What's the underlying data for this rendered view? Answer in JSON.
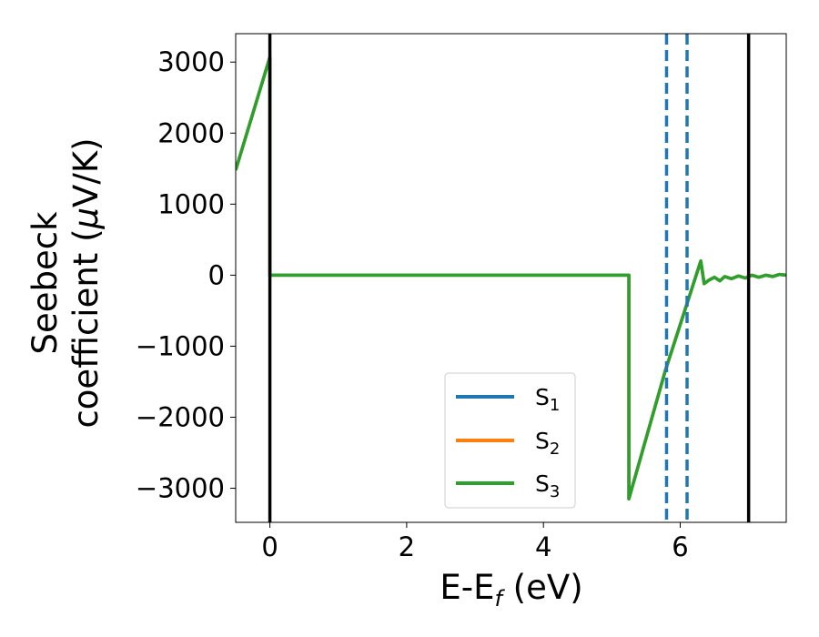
{
  "chart_data": {
    "type": "line",
    "xlabel": {
      "main": "E-E",
      "sub": "f",
      "tail": " (eV)"
    },
    "ylabel": {
      "line1": "Seebeck",
      "line2": "coefficient  (",
      "mu": "μ",
      "line2_tail": "V/K)"
    },
    "xlim": [
      -0.5,
      7.55
    ],
    "ylim": [
      -3480,
      3400
    ],
    "xticks": [
      0,
      2,
      4,
      6
    ],
    "xtick_labels": [
      "0",
      "2",
      "4",
      "6"
    ],
    "yticks": [
      3000,
      2000,
      1000,
      0,
      -1000,
      -2000,
      -3000
    ],
    "ytick_labels": [
      "3000",
      "2000",
      "1000",
      "0",
      "−1000",
      "−2000",
      "−3000"
    ],
    "grid": false,
    "legend_placement": "lower-center",
    "series": [
      {
        "name": "S",
        "sub": "1",
        "color": "#1f77b4",
        "points": [
          [
            -0.5,
            1480
          ],
          [
            0.0,
            3070
          ],
          [
            0.0,
            0
          ],
          [
            5.25,
            0
          ],
          [
            5.25,
            -3150
          ],
          [
            5.78,
            -1350
          ],
          [
            6.3,
            200
          ],
          [
            6.35,
            -120
          ],
          [
            6.42,
            -70
          ],
          [
            6.5,
            -30
          ],
          [
            6.58,
            -80
          ],
          [
            6.65,
            -20
          ],
          [
            6.75,
            -50
          ],
          [
            6.85,
            -10
          ],
          [
            6.95,
            -40
          ],
          [
            7.05,
            0
          ],
          [
            7.15,
            -30
          ],
          [
            7.25,
            0
          ],
          [
            7.35,
            -20
          ],
          [
            7.45,
            10
          ],
          [
            7.55,
            0
          ]
        ]
      },
      {
        "name": "S",
        "sub": "2",
        "color": "#ff7f0e",
        "points": [
          [
            -0.5,
            1480
          ],
          [
            0.0,
            3070
          ],
          [
            0.0,
            0
          ],
          [
            5.25,
            0
          ],
          [
            5.25,
            -3150
          ],
          [
            5.78,
            -1350
          ],
          [
            6.3,
            200
          ],
          [
            6.35,
            -120
          ],
          [
            6.42,
            -70
          ],
          [
            6.5,
            -30
          ],
          [
            6.58,
            -80
          ],
          [
            6.65,
            -20
          ],
          [
            6.75,
            -50
          ],
          [
            6.85,
            -10
          ],
          [
            6.95,
            -40
          ],
          [
            7.05,
            0
          ],
          [
            7.15,
            -30
          ],
          [
            7.25,
            0
          ],
          [
            7.35,
            -20
          ],
          [
            7.45,
            10
          ],
          [
            7.55,
            0
          ]
        ]
      },
      {
        "name": "S",
        "sub": "3",
        "color": "#2ca02c",
        "points": [
          [
            -0.5,
            1480
          ],
          [
            0.0,
            3070
          ],
          [
            0.0,
            0
          ],
          [
            5.25,
            0
          ],
          [
            5.25,
            -3150
          ],
          [
            5.78,
            -1350
          ],
          [
            6.3,
            200
          ],
          [
            6.35,
            -120
          ],
          [
            6.42,
            -70
          ],
          [
            6.5,
            -30
          ],
          [
            6.58,
            -80
          ],
          [
            6.65,
            -20
          ],
          [
            6.75,
            -50
          ],
          [
            6.85,
            -10
          ],
          [
            6.95,
            -40
          ],
          [
            7.05,
            0
          ],
          [
            7.15,
            -30
          ],
          [
            7.25,
            0
          ],
          [
            7.35,
            -20
          ],
          [
            7.45,
            10
          ],
          [
            7.55,
            0
          ]
        ]
      }
    ],
    "vlines": [
      {
        "x": 0.0,
        "style": "solid",
        "color": "#000000"
      },
      {
        "x": 7.0,
        "style": "solid",
        "color": "#000000"
      },
      {
        "x": 5.8,
        "style": "dashed",
        "color": "#1f77b4"
      },
      {
        "x": 6.1,
        "style": "dashed",
        "color": "#1f77b4"
      }
    ]
  }
}
